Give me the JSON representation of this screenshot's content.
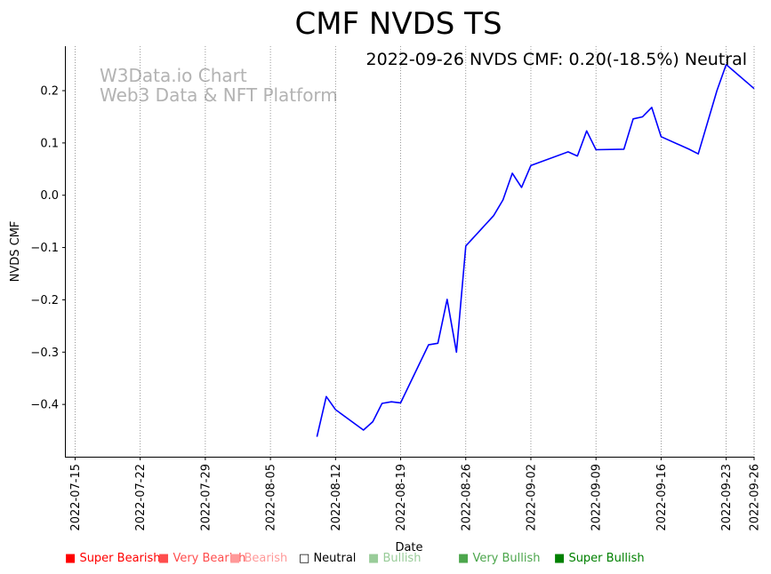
{
  "chart_data": {
    "type": "line",
    "title": "CMF NVDS TS",
    "annotation": "2022-09-26 NVDS CMF: 0.20(-18.5%) Neutral",
    "watermark": [
      "W3Data.io Chart",
      "Web3 Data & NFT Platform"
    ],
    "xlabel": "Date",
    "ylabel": "NVDS CMF",
    "xlim": [
      "2022-07-14",
      "2022-09-26"
    ],
    "ylim": [
      -0.5,
      0.285
    ],
    "x_ticks": [
      "2022-07-15",
      "2022-07-22",
      "2022-07-29",
      "2022-08-05",
      "2022-08-12",
      "2022-08-19",
      "2022-08-26",
      "2022-09-02",
      "2022-09-09",
      "2022-09-16",
      "2022-09-23",
      "2022-09-26"
    ],
    "y_ticks": [
      -0.4,
      -0.3,
      -0.2,
      -0.1,
      0.0,
      0.1,
      0.2
    ],
    "y_tick_labels": [
      "−0.4",
      "−0.3",
      "−0.2",
      "−0.1",
      "0.0",
      "0.1",
      "0.2"
    ],
    "grid": "vertical dotted at x ticks",
    "series": [
      {
        "name": "NVDS CMF",
        "color": "#0000ff",
        "x": [
          "2022-08-10",
          "2022-08-11",
          "2022-08-12",
          "2022-08-15",
          "2022-08-16",
          "2022-08-17",
          "2022-08-18",
          "2022-08-19",
          "2022-08-22",
          "2022-08-23",
          "2022-08-24",
          "2022-08-25",
          "2022-08-26",
          "2022-08-29",
          "2022-08-30",
          "2022-08-31",
          "2022-09-01",
          "2022-09-02",
          "2022-09-06",
          "2022-09-07",
          "2022-09-08",
          "2022-09-09",
          "2022-09-12",
          "2022-09-13",
          "2022-09-14",
          "2022-09-15",
          "2022-09-16",
          "2022-09-19",
          "2022-09-20",
          "2022-09-22",
          "2022-09-23",
          "2022-09-26"
        ],
        "values": [
          -0.462,
          -0.385,
          -0.41,
          -0.449,
          -0.433,
          -0.398,
          -0.395,
          -0.397,
          -0.286,
          -0.283,
          -0.199,
          -0.3,
          -0.097,
          -0.039,
          -0.009,
          0.042,
          0.015,
          0.057,
          0.083,
          0.075,
          0.123,
          0.087,
          0.088,
          0.146,
          0.15,
          0.168,
          0.112,
          0.088,
          0.079,
          0.2,
          0.25,
          0.204
        ]
      }
    ]
  },
  "legend": [
    {
      "label": "Super Bearish",
      "color": "#ff0000",
      "marker": "■"
    },
    {
      "label": "Very Bearish",
      "color": "#ff4d4d",
      "marker": "■"
    },
    {
      "label": "Bearish",
      "color": "#ff9999",
      "marker": "■"
    },
    {
      "label": "Neutral",
      "color": "#000000",
      "marker": "□"
    },
    {
      "label": "Bullish",
      "color": "#99cc99",
      "marker": "■"
    },
    {
      "label": "Very Bullish",
      "color": "#4ca64c",
      "marker": "■"
    },
    {
      "label": "Super Bullish",
      "color": "#008000",
      "marker": "■"
    }
  ]
}
